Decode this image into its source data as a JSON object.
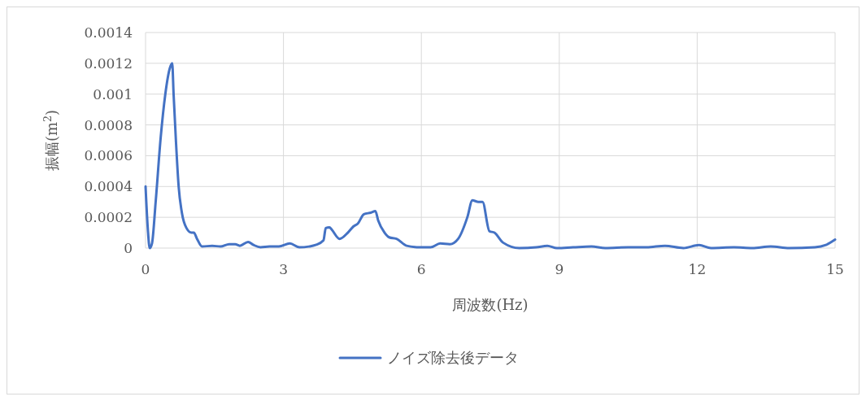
{
  "chart_data": {
    "type": "line",
    "xlabel": "周波数(Hz)",
    "ylabel": "振幅(m$^{2}$)",
    "xlim": [
      0,
      15
    ],
    "xticks": [
      0,
      3,
      6,
      9,
      12,
      15
    ],
    "ylim": [
      0,
      0.0014
    ],
    "yticks": [
      0,
      0.0002,
      0.0004,
      0.0006,
      0.0008,
      0.001,
      0.0012,
      0.0014
    ],
    "grid": true,
    "legend": "bottom",
    "series": [
      {
        "name": "ノイズ除去後データ",
        "color": "#4472c4",
        "x": [
          0,
          0.05,
          0.09,
          0.14,
          0.22,
          0.33,
          0.43,
          0.53,
          0.58,
          0.61,
          0.66,
          0.72,
          0.79,
          0.89,
          1.0,
          1.05,
          1.12,
          1.23,
          1.45,
          1.63,
          1.82,
          1.95,
          2.05,
          2.23,
          2.35,
          2.5,
          2.7,
          2.9,
          3.14,
          3.35,
          3.55,
          3.7,
          3.87,
          3.92,
          4.0,
          4.05,
          4.22,
          4.4,
          4.52,
          4.62,
          4.75,
          4.9,
          5.0,
          5.06,
          5.2,
          5.3,
          5.46,
          5.68,
          5.98,
          6.2,
          6.41,
          6.62,
          6.8,
          7.0,
          7.11,
          7.24,
          7.33,
          7.48,
          7.59,
          7.78,
          8.13,
          8.5,
          8.74,
          8.95,
          9.3,
          9.7,
          10.0,
          10.5,
          10.9,
          11.3,
          11.7,
          12.04,
          12.3,
          12.8,
          13.2,
          13.6,
          14.0,
          14.56,
          14.8,
          15.0
        ],
        "values": [
          0.0004,
          0.00012,
          0.0,
          3e-05,
          0.0003,
          0.00072,
          0.001,
          0.00117,
          0.0012,
          0.001,
          0.0007,
          0.0004,
          0.00023,
          0.00013,
          0.0001,
          0.0001,
          6e-05,
          1e-05,
          1.5e-05,
          1e-05,
          2.5e-05,
          2.5e-05,
          1.5e-05,
          4e-05,
          2e-05,
          5e-06,
          1e-05,
          1e-05,
          3e-05,
          5e-06,
          1e-05,
          2e-05,
          5e-05,
          0.00013,
          0.000135,
          0.00012,
          6e-05,
          0.0001,
          0.00014,
          0.00016,
          0.00022,
          0.00023,
          0.00024,
          0.00018,
          0.0001,
          7e-05,
          6e-05,
          1.5e-05,
          5e-06,
          5e-06,
          3e-05,
          2.5e-05,
          6e-05,
          0.0002,
          0.00031,
          0.0003,
          0.0003,
          0.00011,
          0.0001,
          3.5e-05,
          0.0,
          5e-06,
          1.5e-05,
          0.0,
          5e-06,
          1e-05,
          0.0,
          5e-06,
          5e-06,
          1.5e-05,
          0.0,
          2e-05,
          0.0,
          5e-06,
          0.0,
          1e-05,
          0.0,
          5e-06,
          2e-05,
          5.5e-05
        ]
      }
    ]
  }
}
